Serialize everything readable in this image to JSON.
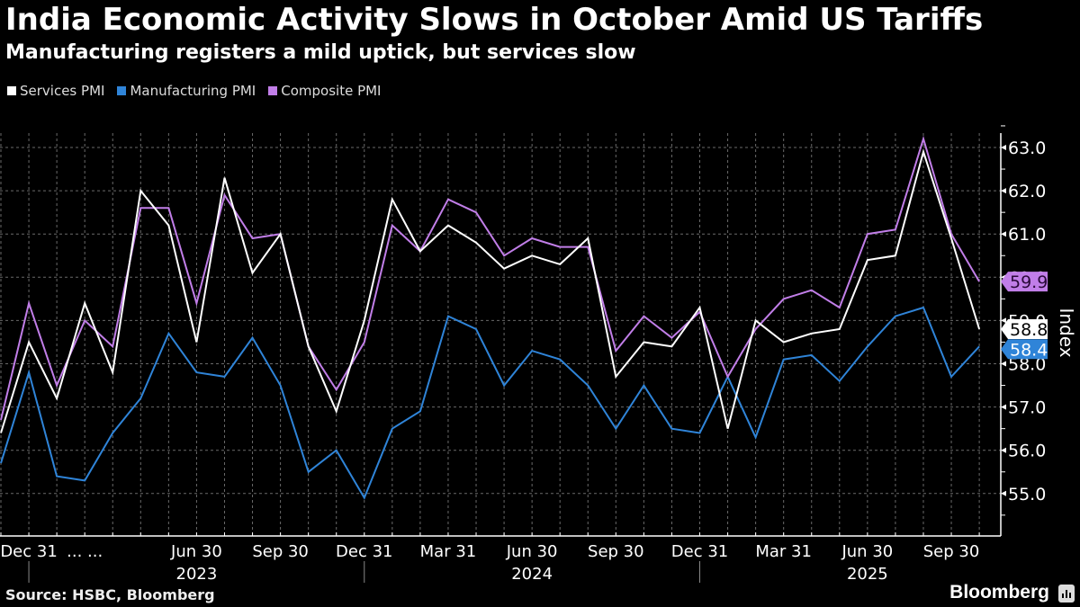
{
  "header": {
    "title": "India Economic Activity Slows in October Amid US Tariffs",
    "subtitle": "Manufacturing registers a mild uptick, but services slow"
  },
  "footer": {
    "source": "Source: HSBC, Bloomberg",
    "brand": "Bloomberg",
    "brand_icon": "bloomberg-chart-icon"
  },
  "colors": {
    "background": "#000000",
    "services": "#ffffff",
    "manufacturing": "#2f84d8",
    "composite": "#c17ee8",
    "grid": "#777777"
  },
  "chart_data": {
    "type": "line",
    "title": "India Economic Activity Slows in October Amid US Tariffs",
    "subtitle": "Manufacturing registers a mild uptick, but services slow",
    "xlabel": "",
    "ylabel": "Index",
    "ylim": [
      54,
      63.8
    ],
    "yticks": [
      55.0,
      56.0,
      57.0,
      58.0,
      59.0,
      60.0,
      61.0,
      62.0,
      63.0
    ],
    "ytick_labels": [
      "55.0",
      "56.0",
      "57.0",
      "58.0",
      "59.0",
      "60.0",
      "61.0",
      "62.0",
      "63.0"
    ],
    "grid": true,
    "legend_position": "top-left",
    "x": [
      "2022-11",
      "2022-12",
      "2023-01",
      "2023-02",
      "2023-03",
      "2023-04",
      "2023-05",
      "2023-06",
      "2023-07",
      "2023-08",
      "2023-09",
      "2023-10",
      "2023-11",
      "2023-12",
      "2024-01",
      "2024-02",
      "2024-03",
      "2024-04",
      "2024-05",
      "2024-06",
      "2024-07",
      "2024-08",
      "2024-09",
      "2024-10",
      "2024-11",
      "2024-12",
      "2025-01",
      "2025-02",
      "2025-03",
      "2025-04",
      "2025-05",
      "2025-06",
      "2025-07",
      "2025-08",
      "2025-09",
      "2025-10"
    ],
    "xtick_labels": [
      {
        "index": 1,
        "label": "Dec 31"
      },
      {
        "index": 3,
        "label": "... ..."
      },
      {
        "index": 7,
        "label": "Jun 30"
      },
      {
        "index": 10,
        "label": "Sep 30"
      },
      {
        "index": 13,
        "label": "Dec 31"
      },
      {
        "index": 16,
        "label": "Mar 31"
      },
      {
        "index": 19,
        "label": "Jun 30"
      },
      {
        "index": 22,
        "label": "Sep 30"
      },
      {
        "index": 25,
        "label": "Dec 31"
      },
      {
        "index": 28,
        "label": "Mar 31"
      },
      {
        "index": 31,
        "label": "Jun 30"
      },
      {
        "index": 34,
        "label": "Sep 30"
      }
    ],
    "year_labels": [
      {
        "center_index": 7,
        "label": "2023"
      },
      {
        "center_index": 19,
        "label": "2024"
      },
      {
        "center_index": 31,
        "label": "2025"
      }
    ],
    "year_dividers": [
      1,
      13,
      25
    ],
    "series": [
      {
        "name": "Services PMI",
        "key": "services",
        "color": "#ffffff",
        "values": [
          56.4,
          58.5,
          57.2,
          59.4,
          57.8,
          62.0,
          61.2,
          58.5,
          62.3,
          60.1,
          61.0,
          58.4,
          56.9,
          59.0,
          61.8,
          60.6,
          61.2,
          60.8,
          60.2,
          60.5,
          60.3,
          60.9,
          57.7,
          58.5,
          58.4,
          59.3,
          56.5,
          59.0,
          58.5,
          58.7,
          58.8,
          60.4,
          60.5,
          62.9,
          60.9,
          58.8
        ],
        "last_label": "58.8"
      },
      {
        "name": "Manufacturing PMI",
        "key": "manufacturing",
        "color": "#2f84d8",
        "values": [
          55.7,
          57.8,
          55.4,
          55.3,
          56.4,
          57.2,
          58.7,
          57.8,
          57.7,
          58.6,
          57.5,
          55.5,
          56.0,
          54.9,
          56.5,
          56.9,
          59.1,
          58.8,
          57.5,
          58.3,
          58.1,
          57.5,
          56.5,
          57.5,
          56.5,
          56.4,
          57.7,
          56.3,
          58.1,
          58.2,
          57.6,
          58.4,
          59.1,
          59.3,
          57.7,
          58.4
        ],
        "last_label": "58.4"
      },
      {
        "name": "Composite PMI",
        "key": "composite",
        "color": "#c17ee8",
        "values": [
          56.7,
          59.4,
          57.5,
          59.0,
          58.4,
          61.6,
          61.6,
          59.4,
          61.9,
          60.9,
          61.0,
          58.4,
          57.4,
          58.5,
          61.2,
          60.6,
          61.8,
          61.5,
          60.5,
          60.9,
          60.7,
          60.7,
          58.3,
          59.1,
          58.6,
          59.2,
          57.7,
          58.8,
          59.5,
          59.7,
          59.3,
          61.0,
          61.1,
          63.2,
          61.0,
          59.9
        ],
        "last_label": "59.9"
      }
    ]
  }
}
